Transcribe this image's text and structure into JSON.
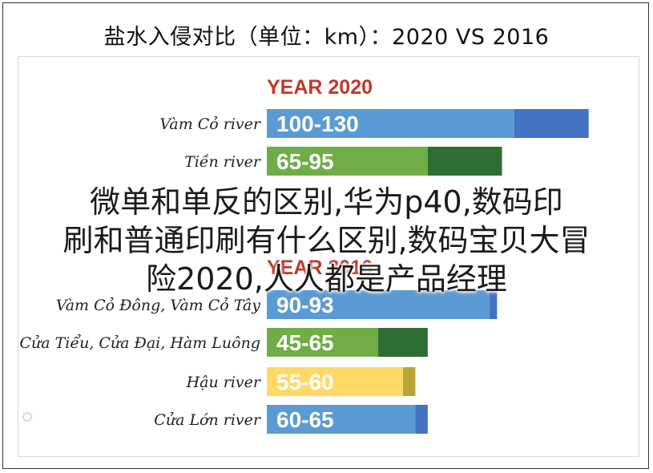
{
  "title": "盐水入侵对比（单位：km）：2020 VS 2016",
  "overlay_text": [
    "微单和单反的区别,华为p40,数码印",
    "刷和普通印刷有什么区别,数码宝贝大冒",
    "险2020,人人都是产品经理"
  ],
  "colors": {
    "blue_light": "#5b9bd5",
    "blue_dark": "#4472c4",
    "green_light": "#70ad47",
    "green_dark": "#2e6e34",
    "yellow_light": "#ffd966",
    "yellow_dark": "#b8a63a",
    "header_red": "#c0392b"
  },
  "chart_data": {
    "type": "bar",
    "groups": [
      {
        "header": "YEAR 2020",
        "rows": [
          {
            "label": "Vàm Cỏ river",
            "range": "100-130",
            "low": 100,
            "high": 130,
            "color": "blue"
          },
          {
            "label": "Tiền river",
            "range": "65-95",
            "low": 65,
            "high": 95,
            "color": "green"
          }
        ]
      },
      {
        "header": "YEAR 2016",
        "rows": [
          {
            "label": "Vàm Cỏ Đông, Vàm Cỏ Tây",
            "range": "90-93",
            "low": 90,
            "high": 93,
            "color": "blue"
          },
          {
            "label": "Cửa Tiểu, Cửa Đại, Hàm Luông",
            "range": "45-65",
            "low": 45,
            "high": 65,
            "color": "green"
          },
          {
            "label": "Hậu river",
            "range": "55-60",
            "low": 55,
            "high": 60,
            "color": "yellow"
          },
          {
            "label": "Cửa Lớn river",
            "range": "60-65",
            "low": 60,
            "high": 65,
            "color": "blue"
          }
        ]
      }
    ]
  }
}
